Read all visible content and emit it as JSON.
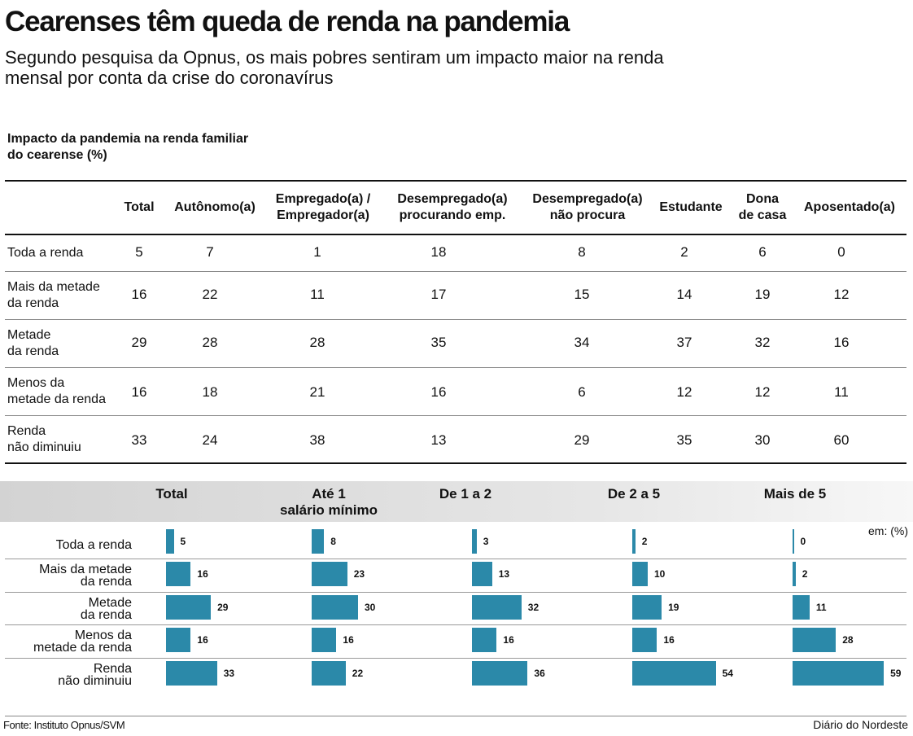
{
  "title": "Cearenses têm queda de renda na pandemia",
  "subtitle": "Segundo pesquisa da Opnus, os mais pobres sentiram um impacto maior na renda mensal por conta da crise do coronavírus",
  "source": "Fonte: Instituto Opnus/SVM",
  "brand": "Diário do Nordeste",
  "colors": {
    "bar": "#2b89a9",
    "rule": "#111111"
  },
  "chart_data": [
    {
      "type": "table",
      "title": "Impacto da pandemia na renda familiar do cearense (%)",
      "columns": [
        "Total",
        "Autônomo(a)",
        "Empregado(a) /\nEmpregador(a)",
        "Desempregado(a)\nprocurando emp.",
        "Desempregado(a)\nnão procura",
        "Estudante",
        "Dona\nde casa",
        "Aposentado(a)"
      ],
      "rows": [
        {
          "label": "Toda a renda",
          "values": [
            5,
            7,
            1,
            18,
            8,
            2,
            6,
            0
          ]
        },
        {
          "label": "Mais da metade\nda renda",
          "values": [
            16,
            22,
            11,
            17,
            15,
            14,
            19,
            12
          ]
        },
        {
          "label": "Metade\nda renda",
          "values": [
            29,
            28,
            28,
            35,
            34,
            37,
            32,
            16
          ]
        },
        {
          "label": "Menos da\nmetade da renda",
          "values": [
            16,
            18,
            21,
            16,
            6,
            12,
            12,
            11
          ]
        },
        {
          "label": "Renda\nnão diminuiu",
          "values": [
            33,
            24,
            38,
            13,
            29,
            35,
            30,
            60
          ]
        }
      ]
    },
    {
      "type": "bar",
      "orientation": "horizontal",
      "unit": "em: (%)",
      "categories": [
        "Toda a renda",
        "Mais da metade\nda renda",
        "Metade\nda renda",
        "Menos da\nmetade da renda",
        "Renda\nnão diminuiu"
      ],
      "series": [
        {
          "name": "Total",
          "values": [
            5,
            16,
            29,
            16,
            33
          ]
        },
        {
          "name": "Até 1\nsalário mínimo",
          "values": [
            8,
            23,
            30,
            16,
            22
          ]
        },
        {
          "name": "De 1 a 2",
          "values": [
            3,
            13,
            32,
            16,
            36
          ]
        },
        {
          "name": "De 2 a 5",
          "values": [
            2,
            10,
            19,
            16,
            54
          ]
        },
        {
          "name": "Mais de 5",
          "values": [
            0,
            2,
            11,
            28,
            59
          ]
        }
      ]
    }
  ]
}
